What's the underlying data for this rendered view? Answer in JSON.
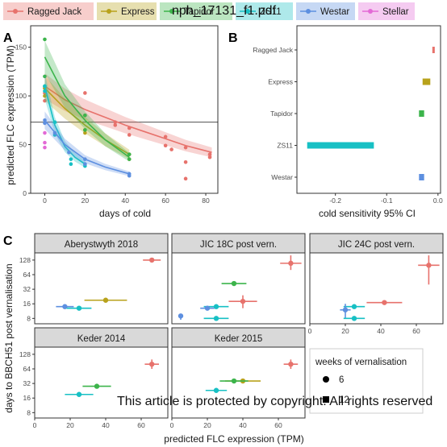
{
  "doc_id": "nph_17131_f1.pdf",
  "watermark": "This article is protected by copyright. All rights reserved",
  "legend": {
    "items": [
      {
        "label": "Ragged  Jack",
        "color": "#e7726c"
      },
      {
        "label": "Express",
        "color": "#b8a21b"
      },
      {
        "label": "Tapidor",
        "color": "#3cb44b"
      },
      {
        "label": "ZS11",
        "color": "#17c0c4"
      },
      {
        "label": "Westar",
        "color": "#5d8fe0"
      },
      {
        "label": "Stellar",
        "color": "#e36ad6"
      }
    ]
  },
  "weeks_legend": {
    "title": "weeks of vernalisation",
    "entries": [
      {
        "label": "6",
        "marker": "circle"
      },
      {
        "label": "12",
        "marker": "square"
      }
    ]
  },
  "chart_data": [
    {
      "panel": "A",
      "type": "scatter",
      "xlabel": "days of cold",
      "ylabel": "predicted FLC expression (TPM)",
      "xlim": [
        -7,
        86
      ],
      "ylim": [
        0,
        172
      ],
      "xticks": [
        0,
        20,
        40,
        60,
        80
      ],
      "yticks": [
        0,
        50,
        100,
        150
      ],
      "hline": 73,
      "grid": false,
      "series": [
        {
          "name": "Ragged  Jack",
          "color": "#e7726c",
          "points": [
            [
              0,
              108
            ],
            [
              0,
              103
            ],
            [
              0,
              95
            ],
            [
              20,
              103
            ],
            [
              20,
              80
            ],
            [
              35,
              70
            ],
            [
              35,
              73
            ],
            [
              42,
              67
            ],
            [
              42,
              60
            ],
            [
              60,
              58
            ],
            [
              60,
              49
            ],
            [
              63,
              45
            ],
            [
              70,
              47
            ],
            [
              70,
              32
            ],
            [
              70,
              15
            ],
            [
              82,
              40
            ],
            [
              82,
              37
            ]
          ],
          "curve": [
            [
              0,
              110
            ],
            [
              10,
              96
            ],
            [
              20,
              86
            ],
            [
              30,
              78
            ],
            [
              40,
              70
            ],
            [
              50,
              63
            ],
            [
              60,
              56
            ],
            [
              70,
              49
            ],
            [
              83,
              42
            ]
          ]
        },
        {
          "name": "Express",
          "color": "#b8a21b",
          "points": [
            [
              0,
              108
            ],
            [
              0,
              100
            ],
            [
              20,
              65
            ],
            [
              20,
              62
            ],
            [
              42,
              40
            ],
            [
              42,
              35
            ]
          ],
          "curve": [
            [
              0,
              108
            ],
            [
              10,
              87
            ],
            [
              20,
              70
            ],
            [
              30,
              55
            ],
            [
              42,
              40
            ]
          ]
        },
        {
          "name": "Tapidor",
          "color": "#3cb44b",
          "points": [
            [
              0,
              158
            ],
            [
              0,
              120
            ],
            [
              0,
              110
            ],
            [
              20,
              80
            ],
            [
              20,
              65
            ],
            [
              42,
              40
            ],
            [
              42,
              35
            ]
          ],
          "curve": [
            [
              0,
              140
            ],
            [
              10,
              100
            ],
            [
              20,
              75
            ],
            [
              30,
              55
            ],
            [
              42,
              37
            ]
          ]
        },
        {
          "name": "ZS11",
          "color": "#17c0c4",
          "points": [
            [
              0,
              110
            ],
            [
              0,
              105
            ],
            [
              5,
              73
            ],
            [
              5,
              60
            ],
            [
              13,
              35
            ],
            [
              13,
              30
            ],
            [
              20,
              30
            ],
            [
              20,
              28
            ]
          ],
          "curve": [
            [
              0,
              110
            ],
            [
              5,
              70
            ],
            [
              10,
              48
            ],
            [
              15,
              37
            ],
            [
              20,
              30
            ]
          ]
        },
        {
          "name": "Westar",
          "color": "#5d8fe0",
          "points": [
            [
              0,
              75
            ],
            [
              0,
              72
            ],
            [
              5,
              62
            ],
            [
              12,
              42
            ],
            [
              20,
              35
            ],
            [
              20,
              30
            ],
            [
              42,
              20
            ],
            [
              42,
              18
            ]
          ],
          "curve": [
            [
              0,
              75
            ],
            [
              10,
              50
            ],
            [
              20,
              35
            ],
            [
              30,
              27
            ],
            [
              42,
              20
            ]
          ]
        },
        {
          "name": "Stellar",
          "color": "#e36ad6",
          "points": [
            [
              0,
              62
            ],
            [
              0,
              52
            ],
            [
              0,
              47
            ]
          ],
          "curve": []
        }
      ]
    },
    {
      "panel": "B",
      "type": "bar",
      "xlabel": "cold sensitivity 95% CI",
      "ylabel": "",
      "categories": [
        "Ragged  Jack",
        "Express",
        "Tapidor",
        "ZS11",
        "Westar"
      ],
      "colors": [
        "#e7726c",
        "#b8a21b",
        "#3cb44b",
        "#17c0c4",
        "#5d8fe0"
      ],
      "intervals": [
        [
          -0.011,
          -0.007
        ],
        [
          -0.03,
          -0.015
        ],
        [
          -0.037,
          -0.027
        ],
        [
          -0.255,
          -0.125
        ],
        [
          -0.037,
          -0.027
        ]
      ],
      "xlim": [
        -0.275,
        0.005
      ],
      "xticks": [
        -0.2,
        -0.1,
        0.0
      ],
      "xticklabels": [
        "-0.2",
        "-0.1",
        "0.0"
      ]
    },
    {
      "panel": "C",
      "type": "scatter",
      "xlabel": "predicted FLC expression (TPM)",
      "ylabel": "days to BBCH51 post vernalisation",
      "xlim": [
        0,
        75
      ],
      "ylog2": true,
      "ylim": [
        6.2,
        180
      ],
      "xticks": [
        0,
        20,
        40,
        60
      ],
      "yticks": [
        8,
        16,
        32,
        64,
        128
      ],
      "facets": [
        {
          "title": "Aberystwyth 2018",
          "points": [
            {
              "series": "Ragged  Jack",
              "x": 66,
              "y": 128,
              "xerr": 5,
              "yerr": [
                128,
                128
              ],
              "marker": "circle"
            },
            {
              "series": "Express",
              "x": 40,
              "y": 19,
              "xerr": 12,
              "yerr": [
                19,
                19
              ],
              "marker": "circle"
            },
            {
              "series": "Westar",
              "x": 17,
              "y": 14,
              "xerr": 5,
              "yerr": [
                14,
                14
              ],
              "marker": "circle"
            },
            {
              "series": "ZS11",
              "x": 25,
              "y": 13,
              "xerr": 7,
              "yerr": [
                13,
                13
              ],
              "marker": "circle"
            }
          ]
        },
        {
          "title": "JIC 18C post vern.",
          "points": [
            {
              "series": "Ragged  Jack",
              "x": 67,
              "y": 110,
              "xerr": 6,
              "yerr": [
                80,
                160
              ],
              "marker": "circle"
            },
            {
              "series": "Tapidor",
              "x": 35,
              "y": 42,
              "xerr": 7,
              "yerr": [
                42,
                42
              ],
              "marker": "circle"
            },
            {
              "series": "Ragged  Jack",
              "x": 40,
              "y": 18,
              "xerr": 8,
              "yerr": [
                13,
                24
              ],
              "marker": "circle"
            },
            {
              "series": "ZS11",
              "x": 25,
              "y": 14,
              "xerr": 7,
              "yerr": [
                14,
                14
              ],
              "marker": "circle"
            },
            {
              "series": "Westar",
              "x": 20,
              "y": 13,
              "xerr": 4,
              "yerr": [
                13,
                13
              ],
              "marker": "circle"
            },
            {
              "series": "ZS11",
              "x": 25,
              "y": 8,
              "xerr": 7,
              "yerr": [
                8,
                8
              ],
              "marker": "circle"
            },
            {
              "series": "Westar",
              "x": 5,
              "y": 9,
              "xerr": 1,
              "yerr": [
                7.5,
                10
              ],
              "marker": "circle"
            }
          ]
        },
        {
          "title": "JIC 24C post vern.",
          "points": [
            {
              "series": "Ragged  Jack",
              "x": 67,
              "y": 100,
              "xerr": 6,
              "yerr": [
                40,
                160
              ],
              "marker": "circle"
            },
            {
              "series": "Ragged  Jack",
              "x": 42,
              "y": 17,
              "xerr": 10,
              "yerr": [
                17,
                17
              ],
              "marker": "circle"
            },
            {
              "series": "ZS11",
              "x": 25,
              "y": 14,
              "xerr": 6,
              "yerr": [
                14,
                14
              ],
              "marker": "circle"
            },
            {
              "series": "Westar",
              "x": 20,
              "y": 12,
              "xerr": 3,
              "yerr": [
                8,
                16
              ],
              "marker": "circle"
            },
            {
              "series": "ZS11",
              "x": 25,
              "y": 8,
              "xerr": 6,
              "yerr": [
                8,
                8
              ],
              "marker": "circle"
            }
          ]
        },
        {
          "title": "Keder 2014",
          "points": [
            {
              "series": "Ragged  Jack",
              "x": 66,
              "y": 80,
              "xerr": 4,
              "yerr": [
                64,
                100
              ],
              "marker": "circle"
            },
            {
              "series": "Tapidor",
              "x": 35,
              "y": 28,
              "xerr": 8,
              "yerr": [
                28,
                28
              ],
              "marker": "circle"
            },
            {
              "series": "ZS11",
              "x": 25,
              "y": 19,
              "xerr": 8,
              "yerr": [
                19,
                19
              ],
              "marker": "circle"
            }
          ]
        },
        {
          "title": "Keder 2015",
          "points": [
            {
              "series": "Ragged  Jack",
              "x": 67,
              "y": 80,
              "xerr": 4,
              "yerr": [
                64,
                100
              ],
              "marker": "circle"
            },
            {
              "series": "Express",
              "x": 40,
              "y": 36,
              "xerr": 10,
              "yerr": [
                36,
                36
              ],
              "marker": "circle"
            },
            {
              "series": "Tapidor",
              "x": 35,
              "y": 36,
              "xerr": 8,
              "yerr": [
                36,
                36
              ],
              "marker": "circle"
            },
            {
              "series": "ZS11",
              "x": 25,
              "y": 23,
              "xerr": 6,
              "yerr": [
                23,
                23
              ],
              "marker": "circle"
            }
          ]
        }
      ]
    }
  ]
}
